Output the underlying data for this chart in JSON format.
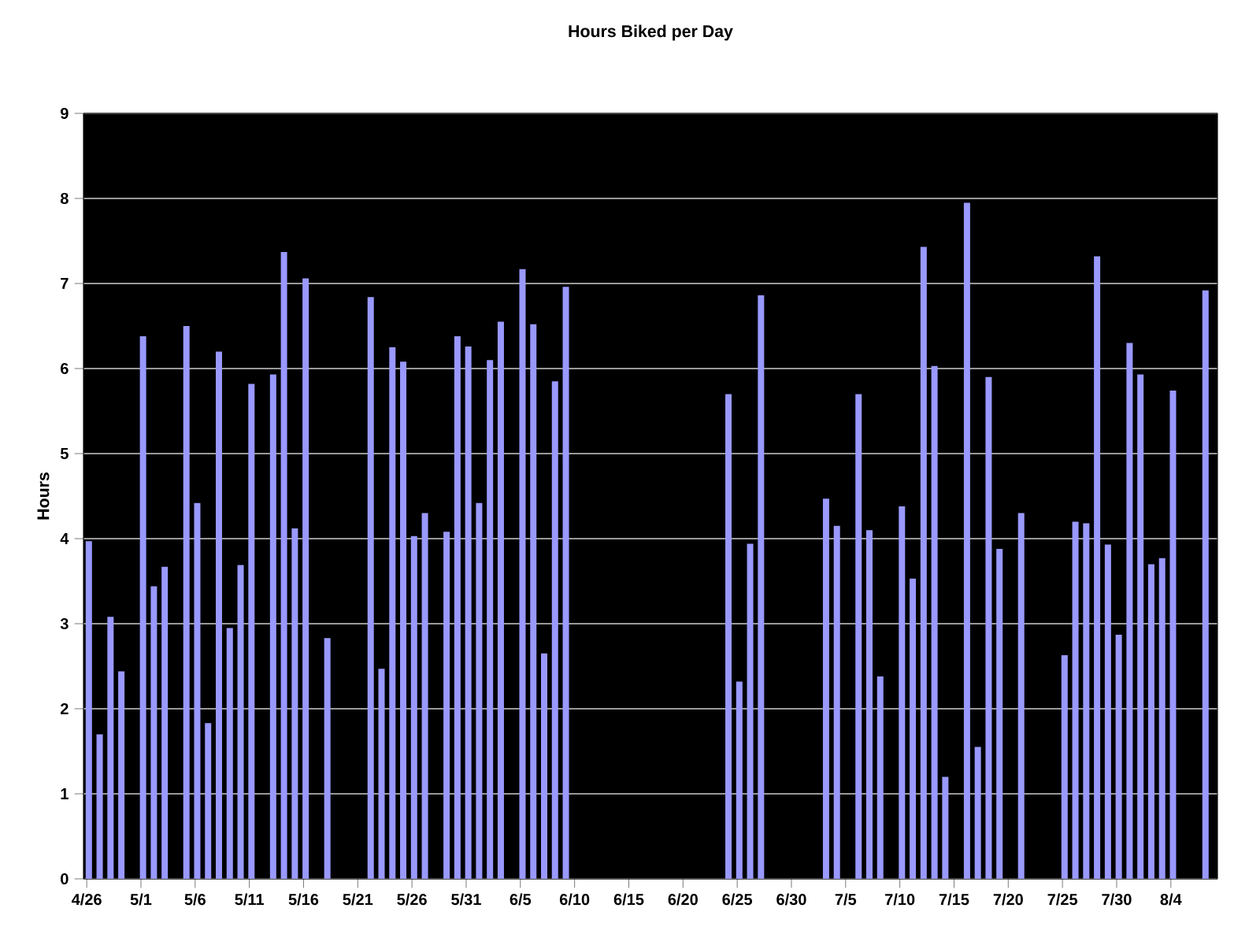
{
  "chart_data": {
    "type": "bar",
    "title": "Hours Biked per Day",
    "ylabel": "Hours",
    "categories": [
      "4/26",
      null,
      null,
      null,
      null,
      "5/1",
      null,
      null,
      null,
      null,
      "5/6",
      null,
      null,
      null,
      null,
      "5/11",
      null,
      null,
      null,
      null,
      "5/16",
      null,
      null,
      null,
      null,
      "5/21",
      null,
      null,
      null,
      null,
      "5/26",
      null,
      null,
      null,
      null,
      "5/31",
      null,
      null,
      null,
      null,
      "6/5",
      null,
      null,
      null,
      null,
      "6/10",
      null,
      null,
      null,
      null,
      "6/15",
      null,
      null,
      null,
      null,
      "6/20",
      null,
      null,
      null,
      null,
      "6/25",
      null,
      null,
      null,
      null,
      "6/30",
      null,
      null,
      null,
      null,
      "7/5",
      null,
      null,
      null,
      null,
      "7/10",
      null,
      null,
      null,
      null,
      "7/15",
      null,
      null,
      null,
      null,
      "7/20",
      null,
      null,
      null,
      null,
      "7/25",
      null,
      null,
      null,
      null,
      "7/30",
      null,
      null,
      null,
      null,
      "8/4",
      null,
      null,
      null,
      null
    ],
    "values": [
      3.97,
      1.7,
      3.08,
      2.44,
      null,
      6.38,
      3.44,
      3.67,
      null,
      6.5,
      4.42,
      1.83,
      6.2,
      2.95,
      3.69,
      5.82,
      null,
      5.93,
      7.37,
      4.12,
      7.06,
      null,
      2.83,
      null,
      null,
      null,
      6.84,
      2.47,
      6.25,
      6.08,
      4.03,
      4.3,
      null,
      4.08,
      6.38,
      6.26,
      4.42,
      6.1,
      6.55,
      null,
      7.17,
      6.52,
      2.65,
      5.85,
      6.96,
      null,
      null,
      null,
      null,
      null,
      null,
      null,
      null,
      null,
      null,
      null,
      null,
      null,
      null,
      5.7,
      2.32,
      3.94,
      6.86,
      null,
      null,
      null,
      null,
      null,
      4.47,
      4.15,
      null,
      5.7,
      4.1,
      2.38,
      null,
      4.38,
      3.53,
      7.43,
      6.03,
      1.2,
      null,
      7.95,
      1.55,
      5.9,
      3.88,
      null,
      4.3,
      null,
      null,
      null,
      2.63,
      4.2,
      4.18,
      7.32,
      3.93,
      2.87,
      6.3,
      5.93,
      3.7,
      3.77,
      5.74,
      null,
      null,
      6.92,
      null
    ],
    "color": "#9999ff",
    "ylim": [
      0,
      9
    ],
    "yticks": [
      0,
      1,
      2,
      3,
      4,
      5,
      6,
      7,
      8,
      9
    ],
    "grid": "y"
  }
}
